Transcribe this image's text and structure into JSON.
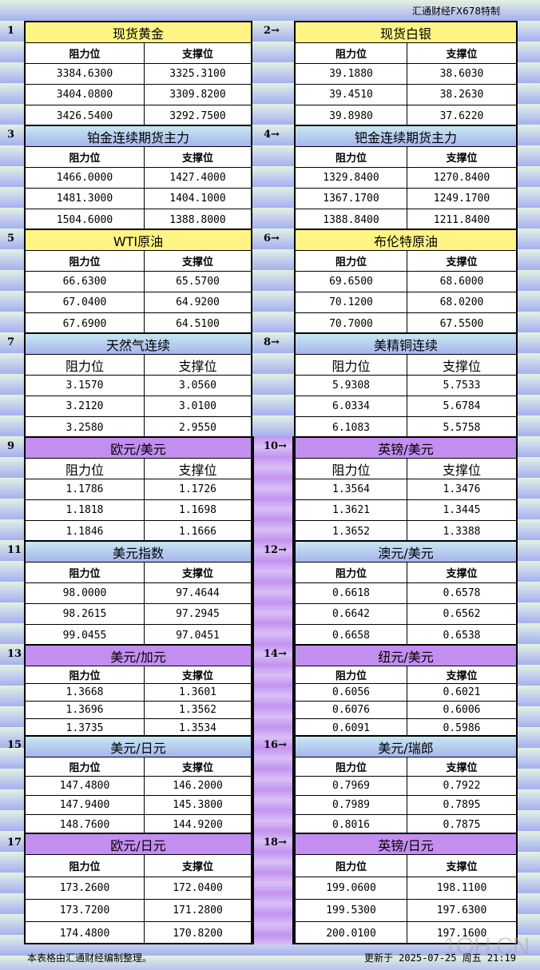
{
  "brand": "汇通财经FX678特制",
  "col_headers": {
    "resistance": "阻力位",
    "support": "支撑位"
  },
  "arrow": "→",
  "colors": {
    "yellow": "#fff484",
    "blue": "#a6b4ee",
    "purple": "#c38ef0"
  },
  "sections": [
    {
      "num": "1",
      "title": "现货黄金",
      "style": "yellow",
      "rows": [
        [
          "3384.6300",
          "3325.3100"
        ],
        [
          "3404.0800",
          "3309.8200"
        ],
        [
          "3426.5400",
          "3292.7500"
        ]
      ]
    },
    {
      "num": "2",
      "title": "现货白银",
      "style": "yellow",
      "rows": [
        [
          "39.1880",
          "38.6030"
        ],
        [
          "39.4510",
          "38.2630"
        ],
        [
          "39.8980",
          "37.6220"
        ]
      ]
    },
    {
      "num": "3",
      "title": "铂金连续期货主力",
      "style": "blue",
      "rows": [
        [
          "1466.0000",
          "1427.4000"
        ],
        [
          "1481.3000",
          "1404.1000"
        ],
        [
          "1504.6000",
          "1388.8000"
        ]
      ]
    },
    {
      "num": "4",
      "title": "钯金连续期货主力",
      "style": "blue",
      "rows": [
        [
          "1329.8400",
          "1270.8400"
        ],
        [
          "1367.1700",
          "1249.1700"
        ],
        [
          "1388.8400",
          "1211.8400"
        ]
      ]
    },
    {
      "num": "5",
      "title": "WTI原油",
      "style": "yellow",
      "rows": [
        [
          "66.6300",
          "65.5700"
        ],
        [
          "67.0400",
          "64.9200"
        ],
        [
          "67.6900",
          "64.5100"
        ]
      ]
    },
    {
      "num": "6",
      "title": "布伦特原油",
      "style": "yellow",
      "rows": [
        [
          "69.6500",
          "68.6000"
        ],
        [
          "70.1200",
          "68.0200"
        ],
        [
          "70.7000",
          "67.5500"
        ]
      ]
    },
    {
      "num": "7",
      "title": "天然气连续",
      "style": "blue",
      "rows": [
        [
          "3.1570",
          "3.0560"
        ],
        [
          "3.2120",
          "3.0100"
        ],
        [
          "3.2580",
          "2.9550"
        ]
      ]
    },
    {
      "num": "8",
      "title": "美精铜连续",
      "style": "blue",
      "rows": [
        [
          "5.9308",
          "5.7533"
        ],
        [
          "6.0334",
          "5.6784"
        ],
        [
          "6.1083",
          "5.5758"
        ]
      ]
    },
    {
      "num": "9",
      "title": "欧元/美元",
      "style": "purple",
      "rows": [
        [
          "1.1786",
          "1.1726"
        ],
        [
          "1.1818",
          "1.1698"
        ],
        [
          "1.1846",
          "1.1666"
        ]
      ]
    },
    {
      "num": "10",
      "title": "英镑/美元",
      "style": "purple",
      "rows": [
        [
          "1.3564",
          "1.3476"
        ],
        [
          "1.3621",
          "1.3445"
        ],
        [
          "1.3652",
          "1.3388"
        ]
      ]
    },
    {
      "num": "11",
      "title": "美元指数",
      "style": "blue",
      "rows": [
        [
          "98.0000",
          "97.4644"
        ],
        [
          "98.2615",
          "97.2945"
        ],
        [
          "99.0455",
          "97.0451"
        ]
      ]
    },
    {
      "num": "12",
      "title": "澳元/美元",
      "style": "blue",
      "rows": [
        [
          "0.6618",
          "0.6578"
        ],
        [
          "0.6642",
          "0.6562"
        ],
        [
          "0.6658",
          "0.6538"
        ]
      ]
    },
    {
      "num": "13",
      "title": "美元/加元",
      "style": "purple",
      "rows": [
        [
          "1.3668",
          "1.3601"
        ],
        [
          "1.3696",
          "1.3562"
        ],
        [
          "1.3735",
          "1.3534"
        ]
      ]
    },
    {
      "num": "14",
      "title": "纽元/美元",
      "style": "purple",
      "rows": [
        [
          "0.6056",
          "0.6021"
        ],
        [
          "0.6076",
          "0.6006"
        ],
        [
          "0.6091",
          "0.5986"
        ]
      ]
    },
    {
      "num": "15",
      "title": "美元/日元",
      "style": "blue",
      "rows": [
        [
          "147.4800",
          "146.2000"
        ],
        [
          "147.9400",
          "145.3800"
        ],
        [
          "148.7600",
          "144.9200"
        ]
      ]
    },
    {
      "num": "16",
      "title": "美元/瑞郎",
      "style": "blue",
      "rows": [
        [
          "0.7969",
          "0.7922"
        ],
        [
          "0.7989",
          "0.7895"
        ],
        [
          "0.8016",
          "0.7875"
        ]
      ]
    },
    {
      "num": "17",
      "title": "欧元/日元",
      "style": "purple",
      "rows": [
        [
          "173.2600",
          "172.0400"
        ],
        [
          "173.7200",
          "171.2800"
        ],
        [
          "174.4800",
          "170.8200"
        ]
      ]
    },
    {
      "num": "18",
      "title": "英镑/日元",
      "style": "purple",
      "rows": [
        [
          "199.0600",
          "198.1100"
        ],
        [
          "199.5300",
          "197.6300"
        ],
        [
          "200.0100",
          "197.1600"
        ]
      ]
    }
  ],
  "footer": {
    "note": "本表格由汇通财经编制整理。",
    "updated": "更新于 2025-07-25 周五 21:19"
  },
  "watermark": "1QH.CN"
}
